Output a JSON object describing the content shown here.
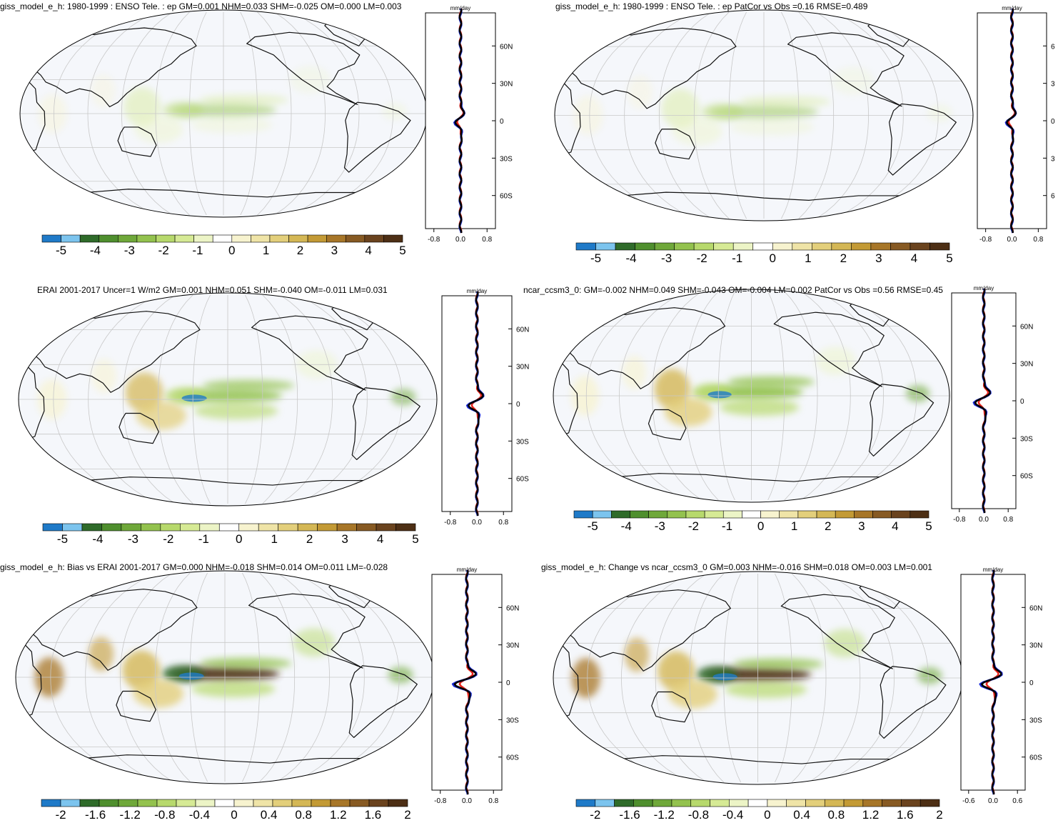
{
  "colors": {
    "ocean": "#f5f7fb",
    "coast": "#111111",
    "grid": "#c8c8c8",
    "line_obs": "#1a2bd8",
    "line_model": "#e8221a",
    "line_black": "#000000"
  },
  "colorbar_colors": [
    "#1f7ac8",
    "#7cc4ee",
    "#2f6b2a",
    "#4f8f2e",
    "#6fa83a",
    "#93c24e",
    "#b7d96c",
    "#d6ea95",
    "#ecf4c6",
    "#ffffff",
    "#f7f3cf",
    "#efe4a7",
    "#e3cf7b",
    "#d4b755",
    "#c39a35",
    "#a77628",
    "#875a23",
    "#6a431e",
    "#4d2f15"
  ],
  "panels": [
    {
      "title": "giss_model_e_h: 1980-1999 : ENSO Tele. : ep GM=0.001 NHM=0.033 SHM=-0.025 OM=0.000 LM=0.003",
      "unit": "mm/day",
      "lat_labels": [
        "60N",
        "30N",
        "0",
        "30S",
        "60S"
      ],
      "zonal_xticks": [
        "-0.8",
        "0.0",
        "0.8"
      ],
      "colorbar_ticks": [
        "-5",
        "-4",
        "-3",
        "-2",
        "-1",
        "0",
        "1",
        "2",
        "3",
        "4",
        "5"
      ],
      "anomaly_strength": 0.25
    },
    {
      "title": "giss_model_e_h: 1980-1999 : ENSO Tele. : ep PatCor vs Obs =0.16 RMSE=0.489",
      "unit": "mm/day",
      "lat_labels": [
        "6",
        "3",
        "0",
        "3",
        "6"
      ],
      "zonal_xticks": [
        "-0.8",
        "0.0",
        "0.8"
      ],
      "colorbar_ticks": [
        "-5",
        "-4",
        "-3",
        "-2",
        "-1",
        "0",
        "1",
        "2",
        "3",
        "4",
        "5"
      ],
      "anomaly_strength": 0.25
    },
    {
      "title": "ERAI 2001-2017 Uncer=1 W/m2 GM=0.001 NHM=0.051 SHM=-0.040 OM=-0.011 LM=0.031",
      "unit": "mm/day",
      "lat_labels": [
        "60N",
        "30N",
        "0",
        "30S",
        "60S"
      ],
      "zonal_xticks": [
        "-0.8",
        "0.0",
        "0.8"
      ],
      "colorbar_ticks": [
        "-5",
        "-4",
        "-3",
        "-2",
        "-1",
        "0",
        "1",
        "2",
        "3",
        "4",
        "5"
      ],
      "anomaly_strength": 0.6
    },
    {
      "title": "ncar_ccsm3_0: GM=-0.002 NHM=0.049 SHM=-0.043 OM=-0.004 LM=0.002 PatCor vs Obs =0.56 RMSE=0.45",
      "unit": "mm/day",
      "lat_labels": [
        "60N",
        "30N",
        "0",
        "30S",
        "60S"
      ],
      "zonal_xticks": [
        "-0.8",
        "0.0",
        "0.8"
      ],
      "colorbar_ticks": [
        "-5",
        "-4",
        "-3",
        "-2",
        "-1",
        "0",
        "1",
        "2",
        "3",
        "4",
        "5"
      ],
      "anomaly_strength": 0.7
    },
    {
      "title": "giss_model_e_h: Bias vs ERAI 2001-2017 GM=0.000 NHM=-0.018 SHM=0.014 OM=0.011 LM=-0.028",
      "unit": "mm/day",
      "lat_labels": [
        "60N",
        "30N",
        "0",
        "30S",
        "60S"
      ],
      "zonal_xticks": [
        "-0.8",
        "0.0",
        "0.8"
      ],
      "colorbar_ticks": [
        "-2",
        "-1.6",
        "-1.2",
        "-0.8",
        "-0.4",
        "0",
        "0.4",
        "0.8",
        "1.2",
        "1.6",
        "2"
      ],
      "anomaly_strength": 1.0
    },
    {
      "title": "giss_model_e_h: Change vs ncar_ccsm3_0 GM=0.003 NHM=-0.016 SHM=0.018 OM=0.003 LM=0.001",
      "unit": "mm/day",
      "lat_labels": [
        "60N",
        "30N",
        "0",
        "30S",
        "60S"
      ],
      "zonal_xticks": [
        "-0.6",
        "0.0",
        "0.6"
      ],
      "colorbar_ticks": [
        "-2",
        "-1.6",
        "-1.2",
        "-0.8",
        "-0.4",
        "0",
        "0.4",
        "0.8",
        "1.2",
        "1.6",
        "2"
      ],
      "anomaly_strength": 1.0
    }
  ]
}
